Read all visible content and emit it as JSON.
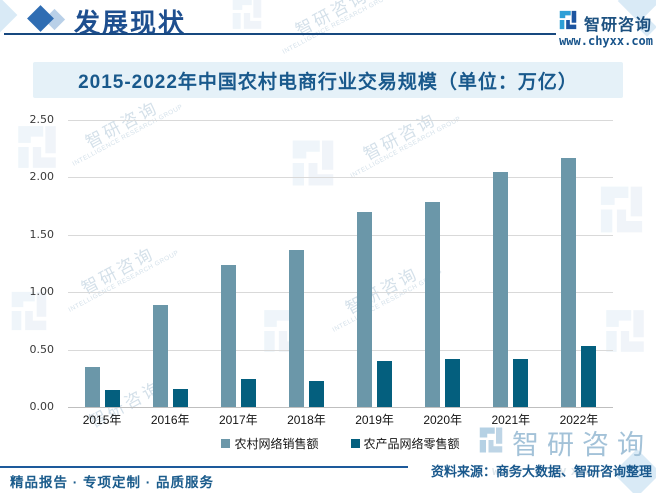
{
  "brand": {
    "name": "智研咨询",
    "site": "www.chyxx.com",
    "accent_color": "#1b5c8c",
    "logo_light": "#2e9fd6",
    "logo_dark": "#1d55a0"
  },
  "header": {
    "section_title": "发展现状"
  },
  "chart": {
    "title": "2015-2022年中国农村电商行业交易规模（单位：万亿）"
  },
  "chart_data": {
    "type": "bar",
    "categories": [
      "2015年",
      "2016年",
      "2017年",
      "2018年",
      "2019年",
      "2020年",
      "2021年",
      "2022年"
    ],
    "series": [
      {
        "name": "农村网络销售额",
        "color": "#6b97a9",
        "values": [
          0.35,
          0.89,
          1.24,
          1.37,
          1.7,
          1.79,
          2.05,
          2.17
        ]
      },
      {
        "name": "农产品网络零售额",
        "color": "#045f7e",
        "values": [
          0.15,
          0.16,
          0.24,
          0.23,
          0.4,
          0.42,
          0.42,
          0.53
        ]
      }
    ],
    "ylim": [
      0,
      2.5
    ],
    "yticks": [
      "2.50",
      "2.00",
      "1.50",
      "1.00",
      "0.50",
      "0.00"
    ],
    "grid": true,
    "legend_position": "bottom"
  },
  "footer": {
    "tagline": "精品报告 · 专项定制 · 品质服务",
    "source_line": "资料来源：商务大数据、智研咨询整理",
    "brand_watermark": "智研咨询"
  },
  "watermark": {
    "cn": "智研咨询",
    "en": "INTELLIGENCE RESEARCH GROUP"
  }
}
